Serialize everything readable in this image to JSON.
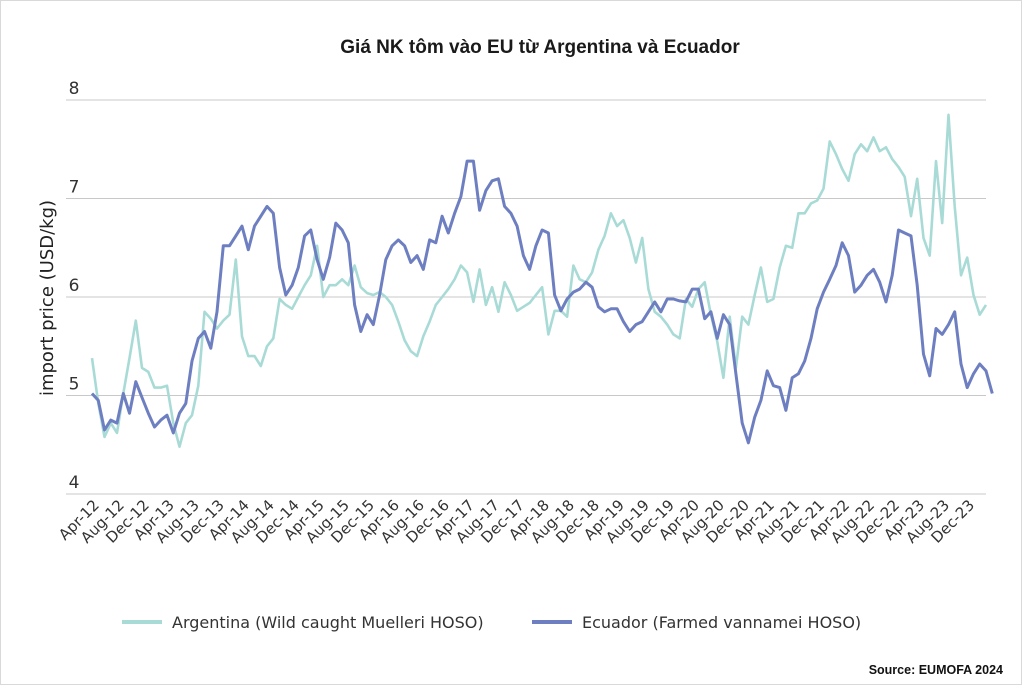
{
  "chart_data": {
    "type": "line",
    "title": "Giá NK tôm vào EU từ Argentina và Ecuador",
    "ylabel": "import price (USD/kg)",
    "xlabel": "",
    "ylim": [
      4,
      8
    ],
    "yticks": [
      "4",
      "5",
      "6",
      "7",
      "8"
    ],
    "grid": "horizontal",
    "legend_position": "bottom",
    "source": "Source: EUMOFA 2024",
    "x_tick_labels": [
      "Apr-12",
      "Aug-12",
      "Dec-12",
      "Apr-13",
      "Aug-13",
      "Dec-13",
      "Apr-14",
      "Aug-14",
      "Dec-14",
      "Apr-15",
      "Aug-15",
      "Dec-15",
      "Apr-16",
      "Aug-16",
      "Dec-16",
      "Apr-17",
      "Aug-17",
      "Dec-17",
      "Apr-18",
      "Aug-18",
      "Dec-18",
      "Apr-19",
      "Aug-19",
      "Dec-19",
      "Apr-20",
      "Aug-20",
      "Dec-20",
      "Apr-21",
      "Aug-21",
      "Dec-21",
      "Apr-22",
      "Aug-22",
      "Dec-22",
      "Apr-23",
      "Aug-23",
      "Dec-23"
    ],
    "x_start": "Apr-12",
    "x_end": "Dec-23",
    "series": [
      {
        "name": "Argentina (Wild caught Muelleri HOSO)",
        "color": "#a9dbd6",
        "values": [
          5.38,
          4.92,
          4.58,
          4.72,
          4.62,
          5.02,
          5.38,
          5.76,
          5.28,
          5.24,
          5.08,
          5.08,
          5.1,
          4.72,
          4.48,
          4.72,
          4.8,
          5.1,
          5.85,
          5.78,
          5.68,
          5.76,
          5.82,
          6.38,
          5.6,
          5.4,
          5.4,
          5.3,
          5.5,
          5.58,
          5.98,
          5.92,
          5.88,
          6.0,
          6.12,
          6.22,
          6.52,
          6.0,
          6.12,
          6.12,
          6.18,
          6.12,
          6.32,
          6.1,
          6.04,
          6.02,
          6.05,
          6.0,
          5.92,
          5.75,
          5.56,
          5.45,
          5.4,
          5.6,
          5.75,
          5.92,
          6.0,
          6.08,
          6.18,
          6.32,
          6.25,
          5.95,
          6.28,
          5.92,
          6.1,
          5.85,
          6.15,
          6.02,
          5.86,
          5.9,
          5.94,
          6.02,
          6.1,
          5.62,
          5.86,
          5.86,
          5.8,
          6.32,
          6.18,
          6.15,
          6.25,
          6.48,
          6.62,
          6.85,
          6.72,
          6.78,
          6.6,
          6.35,
          6.6,
          6.08,
          5.85,
          5.8,
          5.72,
          5.62,
          5.58,
          5.98,
          5.9,
          6.08,
          6.15,
          5.82,
          5.55,
          5.18,
          5.8,
          5.28,
          5.8,
          5.72,
          6.02,
          6.3,
          5.95,
          5.98,
          6.3,
          6.52,
          6.5,
          6.85,
          6.85,
          6.95,
          6.98,
          7.1,
          7.58,
          7.45,
          7.3,
          7.18,
          7.45,
          7.55,
          7.48,
          7.62,
          7.48,
          7.52,
          7.4,
          7.32,
          7.22,
          6.82,
          7.2,
          6.6,
          6.42,
          7.38,
          6.75,
          7.85,
          6.92,
          6.22,
          6.4,
          6.02,
          5.82,
          5.92
        ]
      },
      {
        "name": "Ecuador (Farmed vannamei HOSO)",
        "color": "#6e7fc1",
        "values": [
          5.02,
          4.95,
          4.65,
          4.75,
          4.72,
          5.02,
          4.82,
          5.14,
          4.98,
          4.82,
          4.68,
          4.75,
          4.8,
          4.62,
          4.82,
          4.92,
          5.35,
          5.58,
          5.65,
          5.48,
          5.85,
          6.52,
          6.52,
          6.62,
          6.72,
          6.48,
          6.72,
          6.82,
          6.92,
          6.85,
          6.3,
          6.02,
          6.12,
          6.3,
          6.62,
          6.68,
          6.38,
          6.18,
          6.4,
          6.75,
          6.68,
          6.55,
          5.92,
          5.65,
          5.82,
          5.72,
          6.02,
          6.38,
          6.52,
          6.58,
          6.52,
          6.35,
          6.42,
          6.28,
          6.58,
          6.55,
          6.82,
          6.65,
          6.85,
          7.02,
          7.38,
          7.38,
          6.88,
          7.08,
          7.18,
          7.2,
          6.92,
          6.85,
          6.72,
          6.42,
          6.28,
          6.52,
          6.68,
          6.65,
          6.02,
          5.86,
          5.98,
          6.05,
          6.08,
          6.15,
          6.1,
          5.9,
          5.85,
          5.88,
          5.88,
          5.75,
          5.65,
          5.72,
          5.75,
          5.85,
          5.95,
          5.85,
          5.98,
          5.98,
          5.96,
          5.95,
          6.08,
          6.08,
          5.78,
          5.85,
          5.58,
          5.82,
          5.72,
          5.22,
          4.72,
          4.52,
          4.78,
          4.95,
          5.25,
          5.1,
          5.08,
          4.85,
          5.18,
          5.22,
          5.35,
          5.58,
          5.88,
          6.05,
          6.18,
          6.32,
          6.55,
          6.42,
          6.05,
          6.12,
          6.22,
          6.28,
          6.15,
          5.95,
          6.22,
          6.68,
          6.65,
          6.62,
          6.12,
          5.42,
          5.2,
          5.68,
          5.62,
          5.72,
          5.85,
          5.32,
          5.08,
          5.22,
          5.32,
          5.25,
          5.02
        ]
      }
    ]
  }
}
